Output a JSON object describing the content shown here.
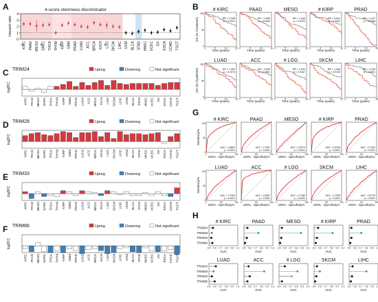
{
  "cancers": [
    "KIRC",
    "PAAD",
    "MESO",
    "SARC",
    "THCA",
    "THYM",
    "KIRP",
    "GBM",
    "PRAD",
    "LUAD",
    "ACC",
    "BRCA",
    "KICH",
    "LGG",
    "SKCM",
    "LIHC",
    "UVM",
    "BLCA",
    "STAD",
    "HNSC",
    "UCEC",
    "OV",
    "ESCA",
    "COAD",
    "TGCT"
  ],
  "colors": {
    "upreg": "#d33a3f",
    "downreg": "#3f7fb5",
    "ns": "#ffffff",
    "pink_band": "#f7d6d8",
    "blue_band": "#cfe3f3",
    "km_red": "#e05a3a",
    "km_grey": "#888888",
    "roc_red": "#d8342d",
    "teal": "#2fa59a"
  },
  "panel_labels": [
    "A",
    "B",
    "C",
    "D",
    "E",
    "F",
    "G",
    "H"
  ],
  "panelA": {
    "title": "4-score stemness discriminator",
    "ylabel": "Hazard ratio",
    "yticks": [
      "4",
      "3",
      "2",
      "1",
      "0"
    ],
    "hash_marks": [
      "#",
      "#",
      "#",
      "#"
    ],
    "hr": [
      2.4,
      2.4,
      2.1,
      2.2,
      2.3,
      1.0,
      2.2,
      2.5,
      2.3,
      2.0,
      1.9,
      2.6,
      2.3,
      2.2,
      2.0,
      1.9,
      1.0,
      0.9,
      1.2,
      1.4,
      1.0,
      1.1,
      1.5,
      1.3,
      1.8
    ],
    "red_indices": [
      0,
      1,
      2,
      3,
      4,
      5,
      6,
      7,
      8,
      9,
      10,
      11,
      12,
      13,
      14,
      15
    ]
  },
  "panelB": {
    "xlabel": "Time (years)",
    "ylabel": "OS (% of patients)",
    "plots": [
      {
        "title": "KIRC",
        "hash": "#",
        "hr": "HR = 2.098",
        "p": "p < 0.0001"
      },
      {
        "title": "PAAD",
        "hash": "",
        "hr": "HR = 1.850",
        "p": "p = 0.0040"
      },
      {
        "title": "MESO",
        "hash": "",
        "hr": "HR = 1.448",
        "p": "p = 0.0202"
      },
      {
        "title": "KIRP",
        "hash": "#",
        "hr": "HR = 5.534",
        "p": "p < 0.0001"
      },
      {
        "title": "PRAD",
        "hash": "",
        "hr": "HR = 4.107",
        "p": "p = 0.0268"
      },
      {
        "title": "LUAD",
        "hash": "",
        "hr": "HR = 1.392",
        "p": "p = 0.0374"
      },
      {
        "title": "ACC",
        "hash": "",
        "hr": "HR = 4.054",
        "p": "p < 0.0001"
      },
      {
        "title": "LGG",
        "hash": "#",
        "hr": "HR = 1.532",
        "p": "p = 0.0167"
      },
      {
        "title": "SKCM",
        "hash": "",
        "hr": "HR = 1.446",
        "p": "p = 0.0109"
      },
      {
        "title": "LIHC",
        "hash": "",
        "hr": "HR = 1.230",
        "p": "p < 0.0001"
      }
    ]
  },
  "bar_panels": [
    {
      "label": "C",
      "title": "TRIM24",
      "ylabel": "log2FC",
      "values": [
        0.3,
        -0.2,
        0.1,
        -0.3,
        0.3,
        0.3,
        0.5,
        0.8,
        0.3,
        0.7,
        0.4,
        0.7,
        0.9,
        0.4,
        0.9,
        0.6,
        0.5,
        0.6,
        0.6,
        0.6,
        0.6,
        0.4,
        0.6,
        0.7,
        0.7
      ],
      "status": [
        "n",
        "n",
        "s",
        "n",
        "s",
        "u",
        "u",
        "u",
        "u",
        "u",
        "u",
        "u",
        "u",
        "u",
        "u",
        "u",
        "u",
        "u",
        "u",
        "u",
        "u",
        "u",
        "u",
        "u",
        "u"
      ]
    },
    {
      "label": "D",
      "title": "TRIM28",
      "ylabel": "log2FC",
      "values": [
        0.6,
        0.8,
        0.9,
        0.7,
        0.6,
        0.8,
        1.0,
        0.9,
        0.4,
        0.9,
        0.9,
        1.0,
        0.5,
        0.9,
        0.3,
        1.0,
        0.7,
        0.8,
        0.8,
        0.7,
        0.8,
        0.9,
        -0.2,
        0.5,
        0.8
      ],
      "status": [
        "u",
        "u",
        "u",
        "u",
        "u",
        "u",
        "u",
        "u",
        "u",
        "u",
        "u",
        "u",
        "u",
        "u",
        "u",
        "u",
        "u",
        "u",
        "u",
        "u",
        "u",
        "u",
        "s",
        "u",
        "u"
      ]
    },
    {
      "label": "E",
      "title": "TRIM33",
      "ylabel": "log2FC",
      "values": [
        0.2,
        -0.5,
        0.2,
        -0.3,
        -0.2,
        -0.3,
        0.3,
        0.2,
        -0.2,
        0.3,
        0.2,
        0.1,
        -0.2,
        0.3,
        0.2,
        -0.1,
        0.2,
        -0.2,
        -0.2,
        0.1,
        -0.2,
        0.2,
        -0.2,
        -0.3,
        0.6
      ],
      "status": [
        "u",
        "d",
        "s",
        "d",
        "s",
        "s",
        "u",
        "s",
        "s",
        "u",
        "s",
        "s",
        "d",
        "u",
        "s",
        "s",
        "s",
        "s",
        "s",
        "s",
        "s",
        "s",
        "s",
        "d",
        "u"
      ]
    },
    {
      "label": "F",
      "title": "TRIM66",
      "ylabel": "log2FC",
      "values": [
        -0.3,
        -0.6,
        0.3,
        -0.6,
        -0.7,
        -0.5,
        -0.7,
        -0.3,
        -0.5,
        -0.8,
        -0.4,
        -0.3,
        -0.5,
        -0.8,
        -0.7,
        -0.3,
        -0.2,
        -0.6,
        -0.7,
        -0.2,
        -0.5,
        -0.6,
        -0.5,
        -0.4,
        -0.9
      ],
      "status": [
        "s",
        "d",
        "s",
        "s",
        "d",
        "s",
        "d",
        "s",
        "s",
        "d",
        "s",
        "s",
        "d",
        "d",
        "d",
        "s",
        "s",
        "d",
        "d",
        "s",
        "s",
        "d",
        "s",
        "s",
        "d"
      ]
    }
  ],
  "legend": {
    "up": "Upreg",
    "down": "Downreg",
    "ns": "Not significant"
  },
  "panelG": {
    "xlabel": "100% - Specificity%",
    "ylabel": "Sensitivity%",
    "plots": [
      {
        "title": "KIRC",
        "hash": "#",
        "auc": "AUC = 0.8800",
        "p": "p < 0.0001"
      },
      {
        "title": "PAAD",
        "hash": "",
        "auc": "AUC = 0.7467",
        "p": "p < 0.0001"
      },
      {
        "title": "MESO",
        "hash": "",
        "auc": "AUC = 0.6274",
        "p": "p = 0.0001"
      },
      {
        "title": "KIRP",
        "hash": "#",
        "auc": "AUC = 0.8764",
        "p": "p < 0.0001"
      },
      {
        "title": "PRAD",
        "hash": "",
        "auc": "AUC = 0.7340",
        "p": "p < 0.0001"
      },
      {
        "title": "LUAD",
        "hash": "",
        "auc": "AUC = 0.7000",
        "p": "p < 0.0001"
      },
      {
        "title": "ACC",
        "hash": "",
        "auc": "AUC = 0.9367",
        "p": "p < 0.0001"
      },
      {
        "title": "LGG",
        "hash": "#",
        "auc": "AUC = 0.7186",
        "p": "p < 0.0001"
      },
      {
        "title": "SKCM",
        "hash": "",
        "auc": "AUC = 0.7355",
        "p": "p < 0.0001"
      },
      {
        "title": "LIHC",
        "hash": "",
        "auc": "AUC = 0.6719",
        "p": "p < 0.0001"
      }
    ]
  },
  "panelH": {
    "xlabel": "AUC",
    "xticks": [
      "0.5",
      "0.6",
      "0.7",
      "0.8",
      "0.9",
      "1.0"
    ],
    "genes": [
      "TRIM24",
      "TRIM28",
      "TRIM33",
      "TRIM66"
    ],
    "plots": [
      {
        "title": "KIRC",
        "hash": "#",
        "auc": [
          0.57,
          0.55,
          0.54,
          0.56
        ]
      },
      {
        "title": "PAAD",
        "hash": "",
        "auc": [
          0.56,
          0.75,
          0.55,
          0.52
        ]
      },
      {
        "title": "MESO",
        "hash": "",
        "auc": [
          0.55,
          0.88,
          0.54,
          0.52
        ]
      },
      {
        "title": "KIRP",
        "hash": "#",
        "auc": [
          0.57,
          0.82,
          0.55,
          0.53
        ]
      },
      {
        "title": "PRAD",
        "hash": "",
        "auc": [
          0.54,
          0.71,
          0.54,
          0.52
        ]
      },
      {
        "title": "LUAD",
        "hash": "",
        "auc": [
          0.62,
          0.58,
          0.55,
          0.6
        ]
      },
      {
        "title": "ACC",
        "hash": "",
        "auc": [
          0.58,
          0.85,
          0.6,
          0.56
        ]
      },
      {
        "title": "LGG",
        "hash": "#",
        "auc": [
          0.6,
          0.82,
          0.72,
          0.55
        ]
      },
      {
        "title": "SKCM",
        "hash": "",
        "auc": [
          0.55,
          0.6,
          0.54,
          0.52
        ]
      },
      {
        "title": "LIHC",
        "hash": "",
        "auc": [
          0.56,
          0.8,
          0.55,
          0.53
        ]
      }
    ]
  }
}
